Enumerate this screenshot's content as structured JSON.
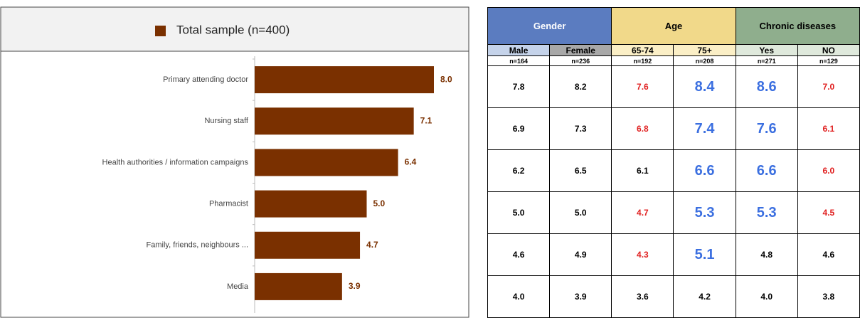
{
  "chart_data": {
    "type": "bar",
    "orientation": "horizontal",
    "legend": "Total sample (n=400)",
    "color": "#7a3000",
    "categories": [
      "Primary attending doctor",
      "Nursing staff",
      "Health authorities / information campaigns",
      "Pharmacist",
      "Family, friends, neighbours ...",
      "Media"
    ],
    "values": [
      8.0,
      7.1,
      6.4,
      5.0,
      4.7,
      3.9
    ],
    "value_labels": [
      "8.0",
      "7.1",
      "6.4",
      "5.0",
      "4.7",
      "3.9"
    ],
    "xlim": [
      0,
      9
    ]
  },
  "table": {
    "groups": [
      {
        "label": "Gender",
        "color": "#5b7cc0",
        "text_color": "#ffffff",
        "sub_color": [
          "#c5d3ea",
          "#a8a8a8"
        ]
      },
      {
        "label": "Age",
        "color": "#f1d98a",
        "text_color": "#000000",
        "sub_color": [
          "#fbefc6",
          "#fbefc6"
        ]
      },
      {
        "label": "Chronic diseases",
        "color": "#8fae8d",
        "text_color": "#000000",
        "sub_color": [
          "#dfe9dc",
          "#dfe9dc"
        ]
      }
    ],
    "columns": [
      "Male",
      "Female",
      "65-74",
      "75+",
      "Yes",
      "NO"
    ],
    "n": [
      "n=164",
      "n=236",
      "n=192",
      "n=208",
      "n=271",
      "n=129"
    ],
    "rows": [
      [
        {
          "text": "7.8",
          "color": "#000000"
        },
        {
          "text": "8.2",
          "color": "#000000"
        },
        {
          "text": "7.6",
          "color": "#e02020"
        },
        {
          "text": "8.4",
          "color": "#3b6fe0"
        },
        {
          "text": "8.6",
          "color": "#3b6fe0"
        },
        {
          "text": "7.0",
          "color": "#e02020"
        }
      ],
      [
        {
          "text": "6.9",
          "color": "#000000"
        },
        {
          "text": "7.3",
          "color": "#000000"
        },
        {
          "text": "6.8",
          "color": "#e02020"
        },
        {
          "text": "7.4",
          "color": "#3b6fe0"
        },
        {
          "text": "7.6",
          "color": "#3b6fe0"
        },
        {
          "text": "6.1",
          "color": "#e02020"
        }
      ],
      [
        {
          "text": "6.2",
          "color": "#000000"
        },
        {
          "text": "6.5",
          "color": "#000000"
        },
        {
          "text": "6.1",
          "color": "#000000"
        },
        {
          "text": "6.6",
          "color": "#3b6fe0"
        },
        {
          "text": "6.6",
          "color": "#3b6fe0"
        },
        {
          "text": "6.0",
          "color": "#e02020"
        }
      ],
      [
        {
          "text": "5.0",
          "color": "#000000"
        },
        {
          "text": "5.0",
          "color": "#000000"
        },
        {
          "text": "4.7",
          "color": "#e02020"
        },
        {
          "text": "5.3",
          "color": "#3b6fe0"
        },
        {
          "text": "5.3",
          "color": "#3b6fe0"
        },
        {
          "text": "4.5",
          "color": "#e02020"
        }
      ],
      [
        {
          "text": "4.6",
          "color": "#000000"
        },
        {
          "text": "4.9",
          "color": "#000000"
        },
        {
          "text": "4.3",
          "color": "#e02020"
        },
        {
          "text": "5.1",
          "color": "#3b6fe0"
        },
        {
          "text": "4.8",
          "color": "#000000"
        },
        {
          "text": "4.6",
          "color": "#000000"
        }
      ],
      [
        {
          "text": "4.0",
          "color": "#000000"
        },
        {
          "text": "3.9",
          "color": "#000000"
        },
        {
          "text": "3.6",
          "color": "#000000"
        },
        {
          "text": "4.2",
          "color": "#000000"
        },
        {
          "text": "4.0",
          "color": "#000000"
        },
        {
          "text": "3.8",
          "color": "#000000"
        }
      ]
    ]
  }
}
